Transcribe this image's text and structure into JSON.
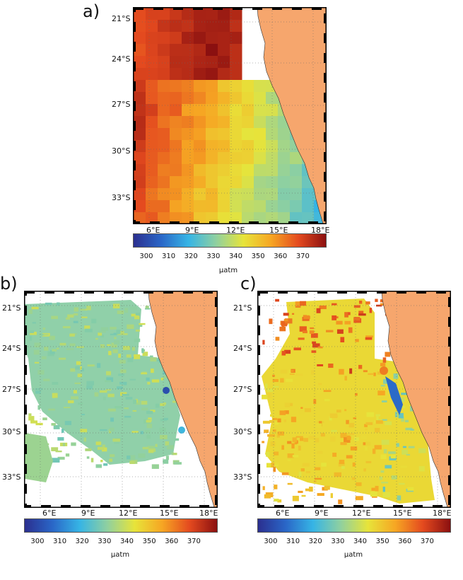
{
  "panels": {
    "a": {
      "letter": "a)",
      "lat_labels": [
        "21°S",
        "24°S",
        "27°S",
        "30°S",
        "33°S"
      ],
      "lon_labels": [
        "6°E",
        "9°E",
        "12°E",
        "15°E",
        "18°E"
      ]
    },
    "b": {
      "letter": "b)",
      "lat_labels": [
        "21°S",
        "24°S",
        "27°S",
        "30°S",
        "33°S"
      ],
      "lon_labels": [
        "6°E",
        "9°E",
        "12°E",
        "15°E",
        "18°E"
      ]
    },
    "c": {
      "letter": "c)",
      "lat_labels": [
        "21°S",
        "24°S",
        "27°S",
        "30°S",
        "33°S"
      ],
      "lon_labels": [
        "6°E",
        "9°E",
        "12°E",
        "15°E",
        "18°E"
      ]
    }
  },
  "colorbar": {
    "ticks": [
      "300",
      "310",
      "320",
      "330",
      "340",
      "350",
      "360",
      "370"
    ],
    "unit": "µatm",
    "colors": [
      "#2b2f8f",
      "#2a66c7",
      "#36b4e5",
      "#8fd0a0",
      "#e7e43a",
      "#f6a623",
      "#e44a1f",
      "#8b1010"
    ]
  },
  "map_colors": {
    "land": "#f6a66d",
    "no_data": "#ffffff",
    "frame_dash": "#000000"
  }
}
